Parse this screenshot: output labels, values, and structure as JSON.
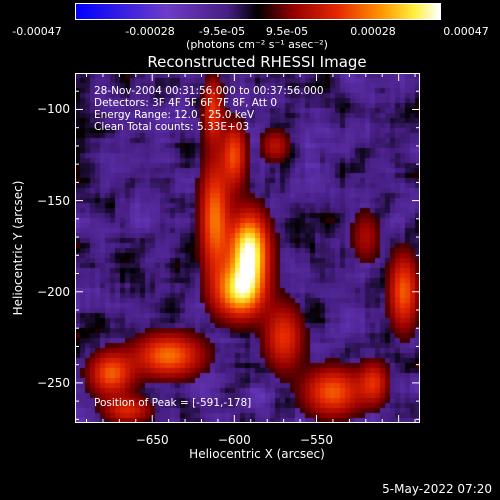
{
  "chart_data": {
    "type": "heatmap",
    "title": "Reconstructed RHESSI Image",
    "xlabel": "Heliocentric X (arcsec)",
    "ylabel": "Heliocentric Y (arcsec)",
    "xlim": [
      -697,
      -487
    ],
    "ylim": [
      -272,
      -80
    ],
    "x_ticks": [
      -650,
      -600,
      -550
    ],
    "y_ticks": [
      -100,
      -150,
      -200,
      -250
    ],
    "colorbar": {
      "ticks": [
        "-0.00047",
        "-0.00028",
        "-9.5e-05",
        "9.5e-05",
        "0.00028",
        "0.00047"
      ],
      "range": [
        -0.00047,
        0.00047
      ],
      "units": "(photons cm⁻² s⁻¹ asec⁻²)"
    },
    "annotations": [
      "28-Nov-2004 00:31:56.000 to 00:37:56.000",
      "Detectors: 3F 4F 5F 6F 7F 8F, Att 0",
      "Energy Range: 12.0 - 25.0 keV",
      "Clean      Total counts: 5.33E+03"
    ],
    "peak_label": "Position of Peak = [-591,-178]",
    "peak": {
      "x": -591,
      "y": -178,
      "value": 0.00047
    },
    "sources": [
      {
        "x": -591,
        "y": -178,
        "amp": 1.0,
        "sx": 8,
        "sy": 14
      },
      {
        "x": -597,
        "y": -200,
        "amp": 0.75,
        "sx": 10,
        "sy": 10
      },
      {
        "x": -612,
        "y": -160,
        "amp": 0.6,
        "sx": 6,
        "sy": 22
      },
      {
        "x": -600,
        "y": -125,
        "amp": 0.5,
        "sx": 5,
        "sy": 12
      },
      {
        "x": -613,
        "y": -100,
        "amp": 0.45,
        "sx": 4,
        "sy": 12
      },
      {
        "x": -640,
        "y": -235,
        "amp": 0.6,
        "sx": 14,
        "sy": 8
      },
      {
        "x": -675,
        "y": -245,
        "amp": 0.55,
        "sx": 9,
        "sy": 8
      },
      {
        "x": -570,
        "y": -225,
        "amp": 0.45,
        "sx": 8,
        "sy": 12
      },
      {
        "x": -540,
        "y": -255,
        "amp": 0.55,
        "sx": 12,
        "sy": 9
      },
      {
        "x": -497,
        "y": -200,
        "amp": 0.55,
        "sx": 6,
        "sy": 14
      },
      {
        "x": -515,
        "y": -250,
        "amp": 0.4,
        "sx": 6,
        "sy": 8
      },
      {
        "x": -575,
        "y": -120,
        "amp": 0.3,
        "sx": 6,
        "sy": 6
      },
      {
        "x": -520,
        "y": -170,
        "amp": 0.25,
        "sx": 6,
        "sy": 10
      },
      {
        "x": -665,
        "y": -265,
        "amp": 0.4,
        "sx": 10,
        "sy": 5
      }
    ],
    "colors": {
      "min": "#0000ff",
      "mid": "#000000",
      "max": "#ffffff"
    }
  },
  "footer": {
    "date": "5-May-2022 07:20"
  }
}
